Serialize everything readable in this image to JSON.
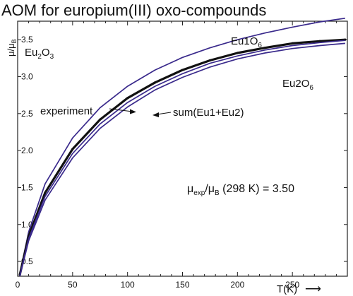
{
  "chart_data": {
    "type": "line",
    "title": "AOM for europium(III) oxo-compounds",
    "xlabel": "T(K)",
    "ylabel_main": "μ/μ",
    "ylabel_sub": "B",
    "xlim": [
      0,
      300
    ],
    "ylim": [
      0.3,
      3.75
    ],
    "x_ticks": [
      0,
      50,
      100,
      150,
      200,
      250
    ],
    "y_ticks": [
      0.5,
      1.0,
      1.5,
      2.0,
      2.5,
      3.0,
      3.5
    ],
    "series": [
      {
        "name": "Eu1O6",
        "color": "#3a2a8c",
        "x": [
          2,
          10,
          25,
          50,
          75,
          100,
          125,
          150,
          175,
          200,
          225,
          250,
          275,
          298
        ],
        "y": [
          0.34,
          0.9,
          1.55,
          2.17,
          2.58,
          2.87,
          3.09,
          3.26,
          3.39,
          3.5,
          3.59,
          3.67,
          3.74,
          3.79
        ]
      },
      {
        "name": "experiment",
        "color": "#111111",
        "x": [
          2,
          10,
          25,
          50,
          75,
          100,
          125,
          150,
          175,
          200,
          225,
          250,
          275,
          298
        ],
        "y": [
          0.32,
          0.84,
          1.43,
          2.02,
          2.42,
          2.71,
          2.92,
          3.09,
          3.22,
          3.32,
          3.39,
          3.45,
          3.48,
          3.5
        ]
      },
      {
        "name": "sum(Eu1+Eu2)",
        "color": "#3a2a8c",
        "x": [
          2,
          10,
          25,
          50,
          75,
          100,
          125,
          150,
          175,
          200,
          225,
          250,
          275,
          298
        ],
        "y": [
          0.31,
          0.81,
          1.38,
          1.96,
          2.36,
          2.65,
          2.87,
          3.04,
          3.18,
          3.28,
          3.36,
          3.42,
          3.46,
          3.49
        ]
      },
      {
        "name": "Eu2O6",
        "color": "#3a2a8c",
        "x": [
          2,
          10,
          25,
          50,
          75,
          100,
          125,
          150,
          175,
          200,
          225,
          250,
          275,
          298
        ],
        "y": [
          0.3,
          0.78,
          1.33,
          1.9,
          2.3,
          2.59,
          2.82,
          2.99,
          3.13,
          3.24,
          3.32,
          3.38,
          3.42,
          3.45
        ]
      }
    ],
    "annotations": {
      "compound_main": "Eu",
      "compound_sub1": "2",
      "compound_mid": "O",
      "compound_sub2": "3",
      "eu1_main": "Eu1O",
      "eu1_sub": "6",
      "eu2_main": "Eu2O",
      "eu2_sub": "6",
      "experiment": "experiment",
      "sum": "sum(Eu1+Eu2)",
      "mu_main": "μ",
      "mu_sub_exp": "exp",
      "mu_slash": "/μ",
      "mu_sub_b": "B",
      "mu_rest": " (298 K) = 3.50",
      "t_arrow": "⟶"
    }
  }
}
